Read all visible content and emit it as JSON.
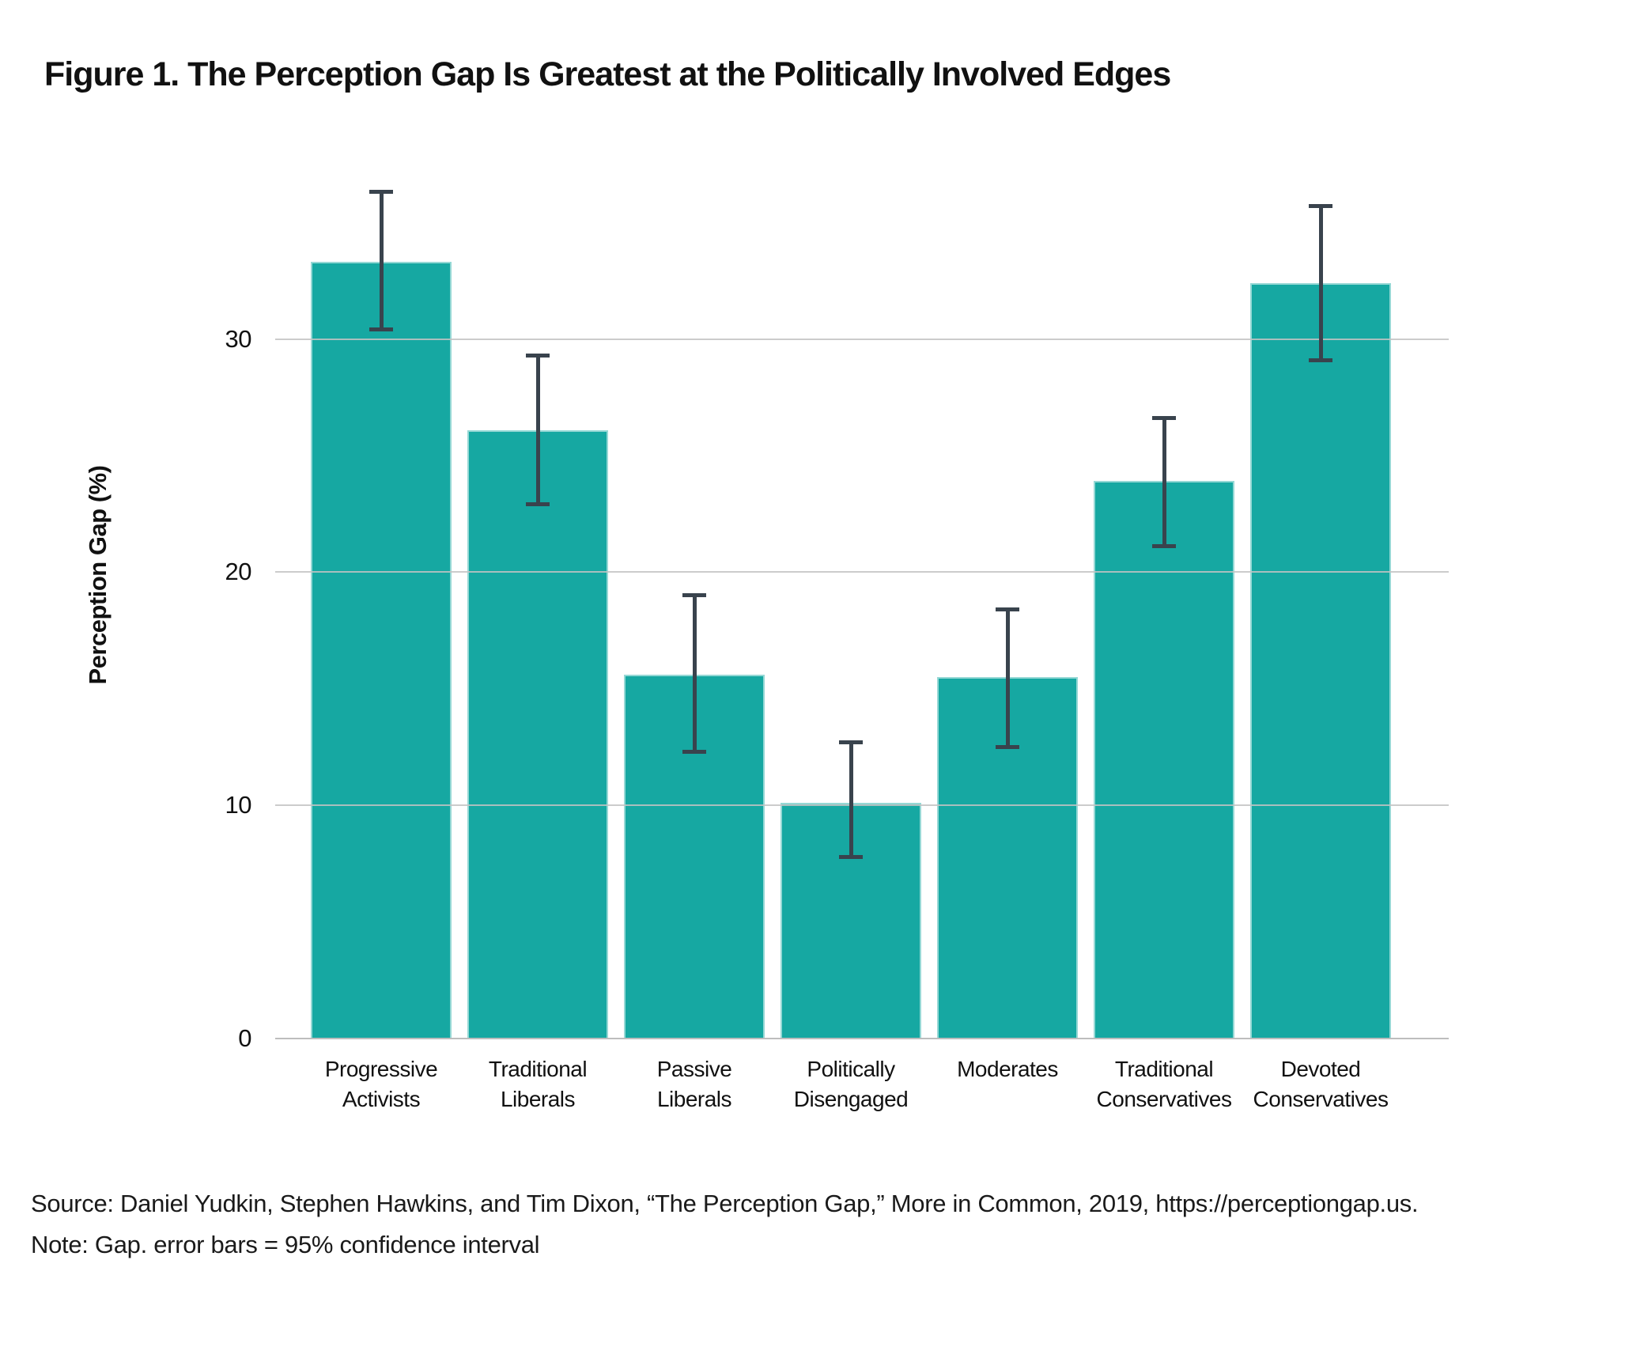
{
  "title": "Figure 1. The Perception Gap Is Greatest at the Politically Involved Edges",
  "source_line": "Source: Daniel Yudkin, Stephen Hawkins, and Tim Dixon, “The Perception Gap,” More in Common, 2019, https://perceptiongap.us.",
  "note_line": "Note: Gap. error bars = 95% confidence interval",
  "colors": {
    "bar": "#16a8a2",
    "error_bar": "#39434d",
    "gridline": "#c3c3c3",
    "axis_line": "#bdbdbd",
    "text": "#111111"
  },
  "chart_data": {
    "type": "bar",
    "title": "Figure 1. The Perception Gap Is Greatest at the Politically Involved Edges",
    "xlabel": "",
    "ylabel": "Perception Gap (%)",
    "ylim": [
      0,
      38.5
    ],
    "yticks": [
      0,
      10,
      20,
      30
    ],
    "grid": true,
    "legend": "none",
    "error_bars": "95% confidence interval",
    "categories": [
      "Progressive Activists",
      "Traditional Liberals",
      "Passive Liberals",
      "Politically Disengaged",
      "Moderates",
      "Traditional Conservatives",
      "Devoted Conservatives"
    ],
    "bars": [
      {
        "category": "Progressive Activists",
        "label_lines": [
          "Progressive",
          "Activists"
        ],
        "value": 33.3,
        "ci_low": 30.4,
        "ci_high": 36.3
      },
      {
        "category": "Traditional Liberals",
        "label_lines": [
          "Traditional",
          "Liberals"
        ],
        "value": 26.1,
        "ci_low": 22.9,
        "ci_high": 29.3
      },
      {
        "category": "Passive Liberals",
        "label_lines": [
          "Passive",
          "Liberals"
        ],
        "value": 15.6,
        "ci_low": 12.3,
        "ci_high": 19.0
      },
      {
        "category": "Politically Disengaged",
        "label_lines": [
          "Politically",
          "Disengaged"
        ],
        "value": 10.1,
        "ci_low": 7.8,
        "ci_high": 12.7
      },
      {
        "category": "Moderates",
        "label_lines": [
          "Moderates"
        ],
        "value": 15.5,
        "ci_low": 12.5,
        "ci_high": 18.4
      },
      {
        "category": "Traditional Conservatives",
        "label_lines": [
          "Traditional",
          "Conservatives"
        ],
        "value": 23.9,
        "ci_low": 21.1,
        "ci_high": 26.6
      },
      {
        "category": "Devoted Conservatives",
        "label_lines": [
          "Devoted",
          "Conservatives"
        ],
        "value": 32.4,
        "ci_low": 29.1,
        "ci_high": 35.7
      }
    ]
  }
}
